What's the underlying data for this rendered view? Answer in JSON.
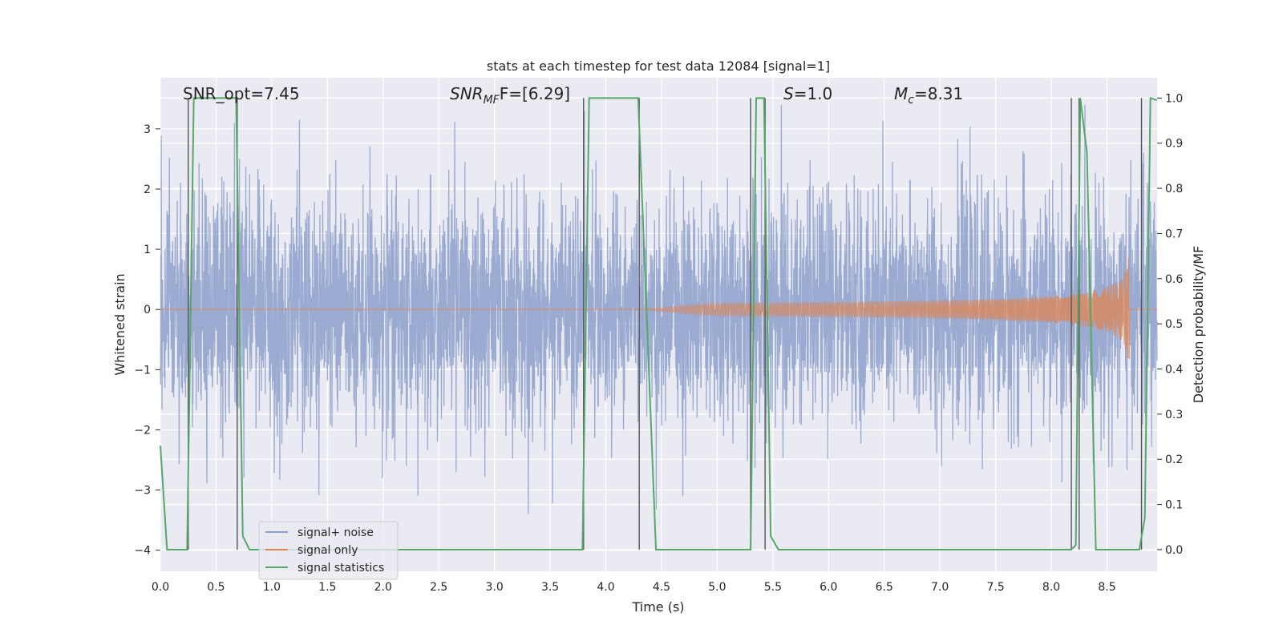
{
  "chart_data": {
    "type": "line",
    "title": "stats at each timestep for test data 12084 [signal=1]",
    "xlabel": "Time (s)",
    "ylabel": "Whitened strain",
    "y2label": "Detection probability/MF",
    "xlim": [
      0.0,
      8.95
    ],
    "ylim": [
      -4.35,
      3.85
    ],
    "y2lim": [
      -0.048,
      1.045
    ],
    "xticks": [
      "0.0",
      "0.5",
      "1.0",
      "1.5",
      "2.0",
      "2.5",
      "3.0",
      "3.5",
      "4.0",
      "4.5",
      "5.0",
      "5.5",
      "6.0",
      "6.5",
      "7.0",
      "7.5",
      "8.0",
      "8.5"
    ],
    "yticks": [
      "−4",
      "−3",
      "−2",
      "−1",
      "0",
      "1",
      "2",
      "3"
    ],
    "y2ticks": [
      "0.0",
      "0.1",
      "0.2",
      "0.3",
      "0.4",
      "0.5",
      "0.6",
      "0.7",
      "0.8",
      "0.9",
      "1.0"
    ],
    "annotations": {
      "snr_opt": "SNR_opt=7.45",
      "snr_mf_base": "SNR",
      "snr_mf_sub": "MF",
      "snr_mf_rest": "F=[6.29]",
      "s_var": "S",
      "s_rest": "=1.0",
      "mc_var": "M",
      "mc_sub": "c",
      "mc_rest": "=8.31"
    },
    "series": [
      {
        "name": "signal+ noise",
        "color": "#8c9fcb",
        "axis": "left",
        "description": "whitened strain noise, approx amplitude ±1.2 core, peaks to ±3.4",
        "envelope_core": 1.2,
        "spike_max": 3.4
      },
      {
        "name": "signal only",
        "color": "#dd8452",
        "axis": "left",
        "chirp_start": 4.3,
        "chirp_end": 8.7,
        "peak_amplitude": 0.95
      },
      {
        "name": "signal statistics",
        "color": "#55a868",
        "axis": "right",
        "points": [
          [
            0.0,
            0.23
          ],
          [
            0.06,
            0.0
          ],
          [
            0.24,
            0.0
          ],
          [
            0.3,
            1.0
          ],
          [
            0.68,
            1.0
          ],
          [
            0.74,
            0.03
          ],
          [
            0.8,
            0.0
          ],
          [
            3.79,
            0.0
          ],
          [
            3.85,
            1.0
          ],
          [
            4.29,
            1.0
          ],
          [
            4.45,
            0.0
          ],
          [
            5.3,
            0.0
          ],
          [
            5.35,
            1.0
          ],
          [
            5.42,
            1.0
          ],
          [
            5.48,
            0.03
          ],
          [
            5.55,
            0.0
          ],
          [
            8.18,
            0.0
          ],
          [
            8.22,
            0.01
          ],
          [
            8.26,
            1.0
          ],
          [
            8.32,
            0.88
          ],
          [
            8.4,
            0.0
          ],
          [
            8.79,
            0.0
          ],
          [
            8.84,
            0.07
          ],
          [
            8.89,
            1.0
          ],
          [
            8.95,
            0.995
          ]
        ]
      }
    ],
    "vlines": [
      0.25,
      0.69,
      3.8,
      4.3,
      5.3,
      5.43,
      8.18,
      8.25,
      8.81
    ],
    "legend": {
      "position": "lower-left",
      "entries": [
        {
          "label": "signal+ noise",
          "color": "#8c9fcb"
        },
        {
          "label": "signal only",
          "color": "#dd8452"
        },
        {
          "label": "signal statistics",
          "color": "#55a868"
        }
      ]
    }
  }
}
